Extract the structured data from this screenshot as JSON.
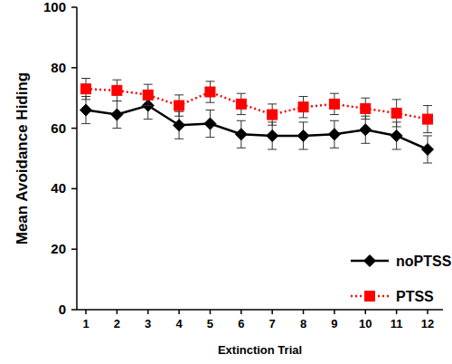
{
  "chart_data": {
    "type": "line",
    "x_label": "Extinction Trial",
    "y_label": "Mean Avoidance Hiding",
    "categories": [
      "1",
      "2",
      "3",
      "4",
      "5",
      "6",
      "7",
      "8",
      "9",
      "10",
      "11",
      "12"
    ],
    "ylim": [
      0,
      100
    ],
    "yticks": [
      0,
      20,
      40,
      60,
      80,
      100
    ],
    "legend": "right",
    "grid": false,
    "series": [
      {
        "name": "noPTSS",
        "color": "#000000",
        "marker": "diamond",
        "line_style": "solid",
        "values": [
          66,
          64.5,
          67.5,
          61,
          61.5,
          58,
          57.5,
          57.5,
          58,
          59.5,
          57.5,
          53
        ],
        "errors": [
          4.5,
          4.5,
          4.5,
          4.5,
          4.5,
          4.5,
          4.5,
          4.5,
          4.5,
          4.5,
          4.5,
          4.5
        ]
      },
      {
        "name": "PTSS",
        "color": "#ff0000",
        "marker": "square",
        "line_style": "dotted",
        "values": [
          73,
          72.5,
          71,
          67.5,
          72,
          68,
          64.5,
          67,
          68,
          66.5,
          65,
          63
        ],
        "errors": [
          3.5,
          3.5,
          3.5,
          3.5,
          3.5,
          3.5,
          3.5,
          3.5,
          3.5,
          3.5,
          4.5,
          4.5
        ]
      }
    ]
  }
}
